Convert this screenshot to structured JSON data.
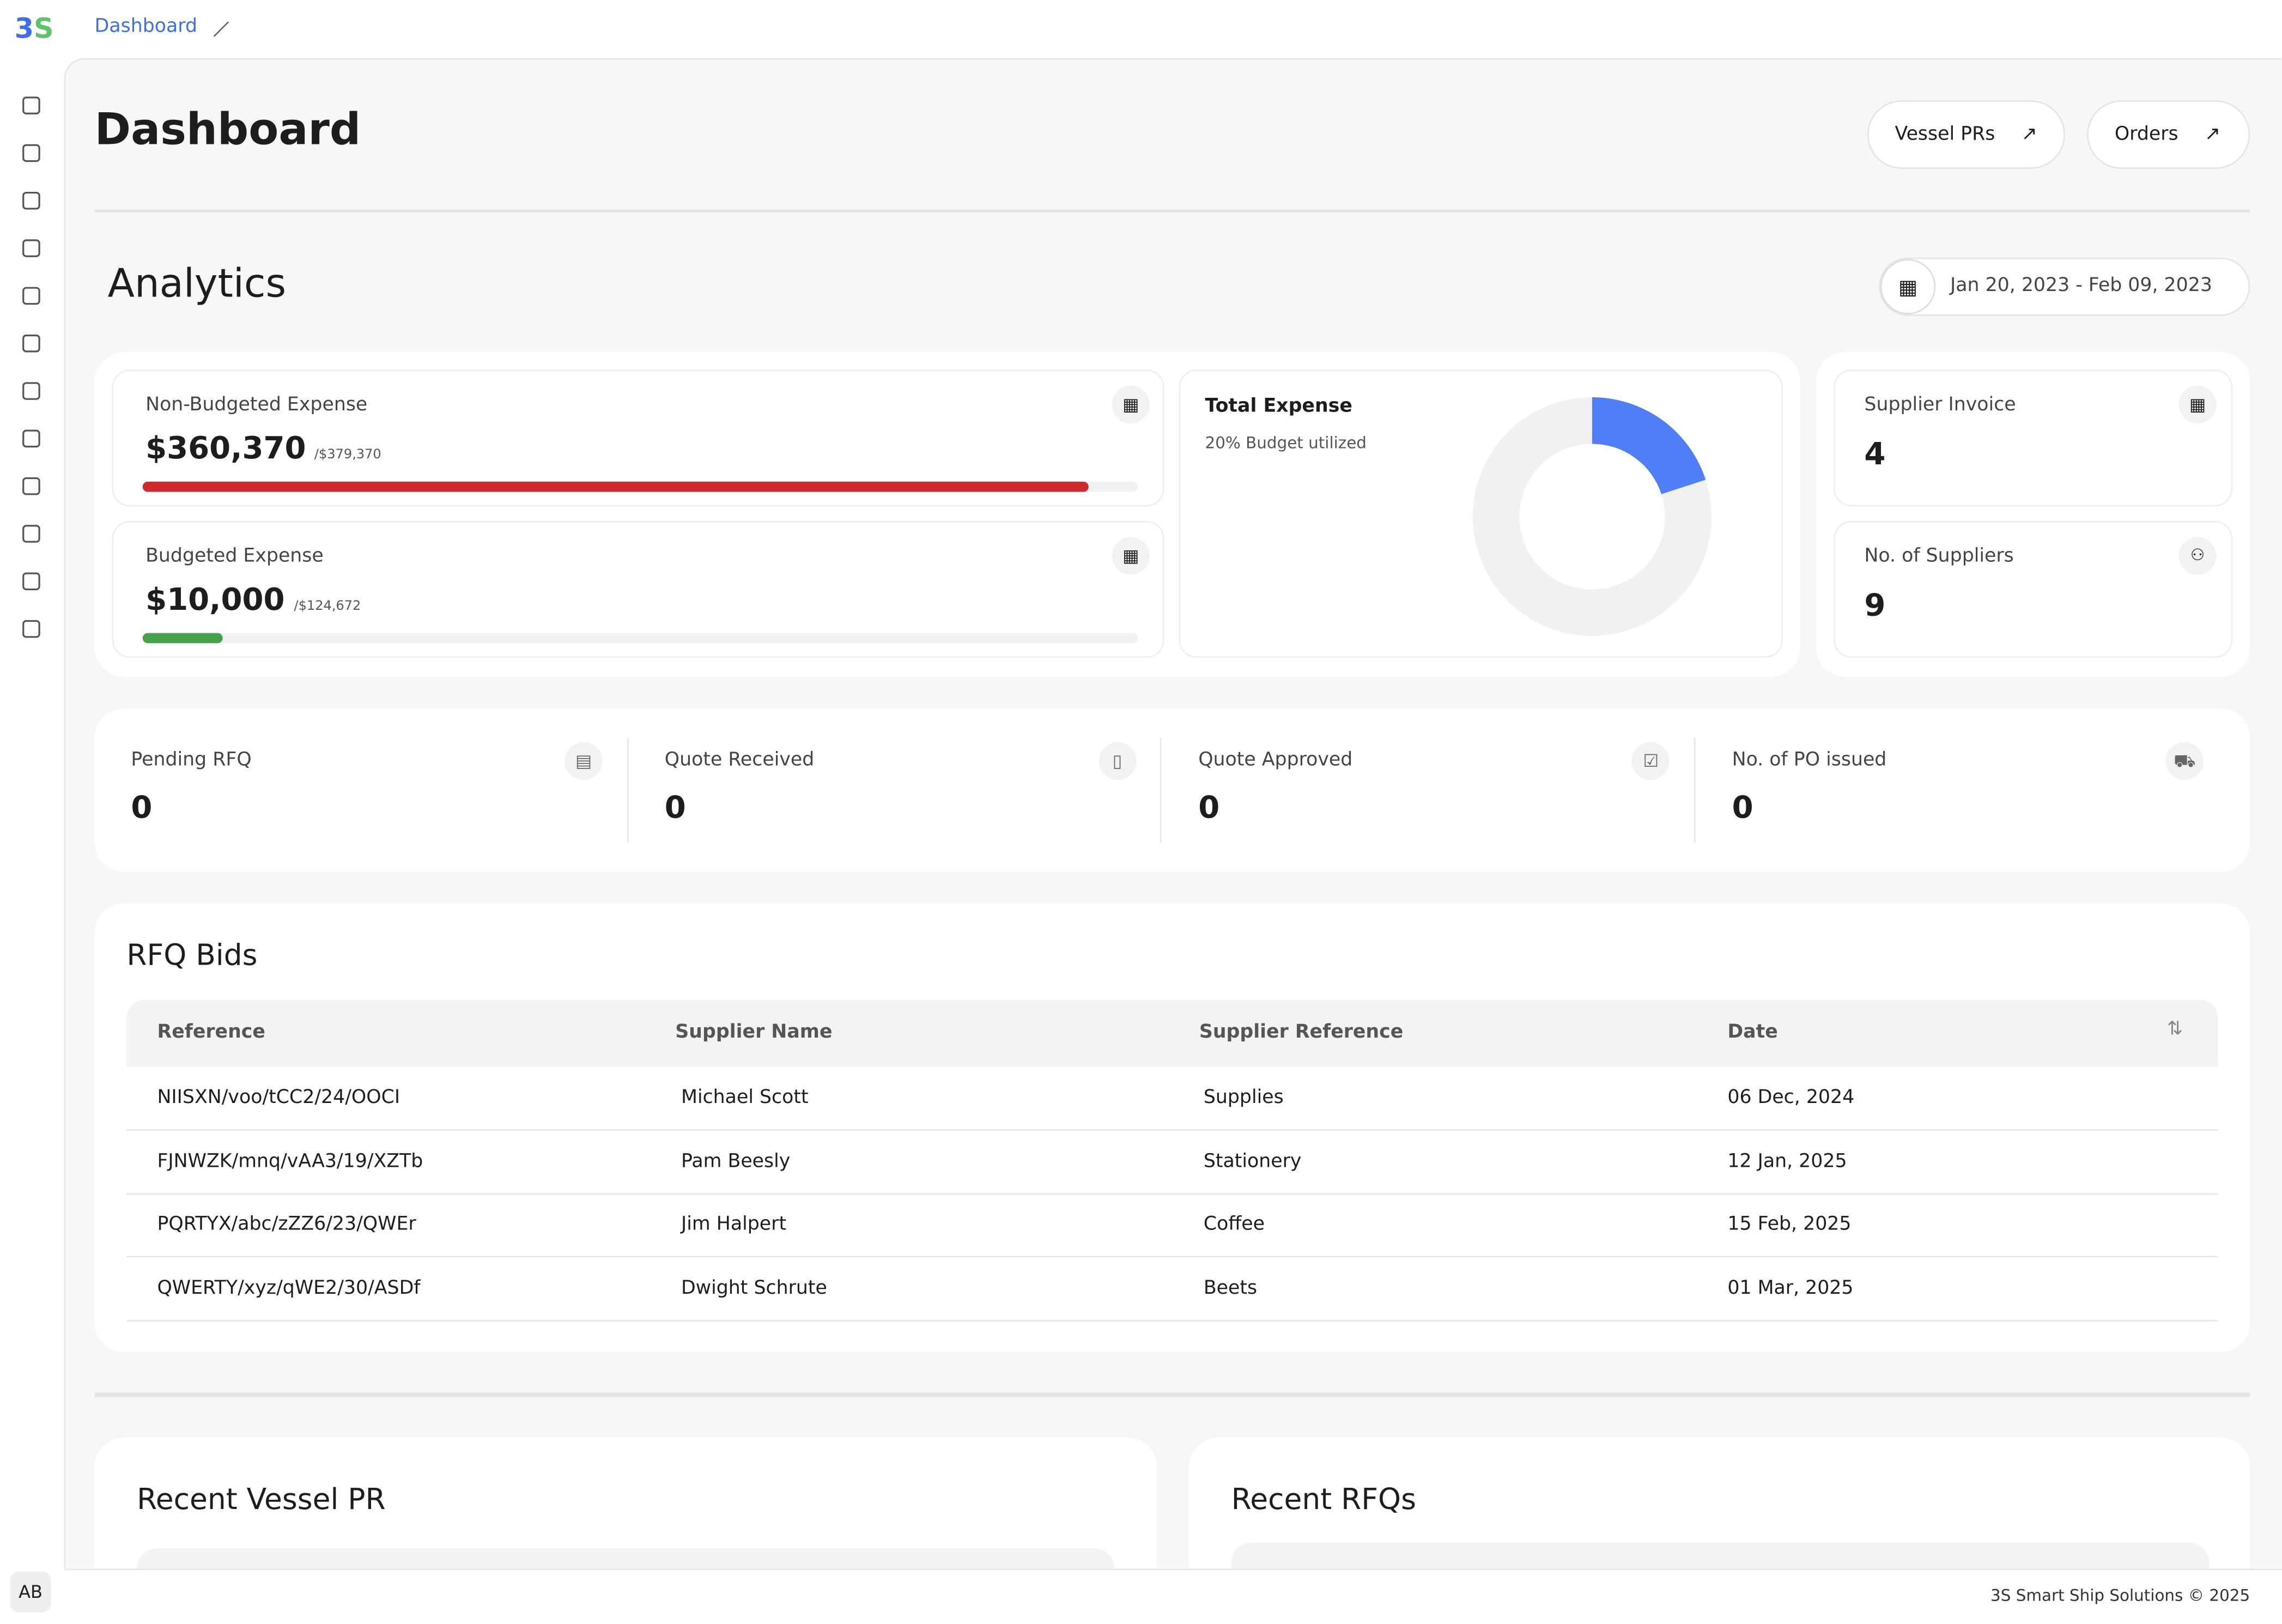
{
  "sidebar": {
    "logo": "3S",
    "avatar": "AB"
  },
  "breadcrumb": "Dashboard",
  "header": {
    "title": "Dashboard",
    "buttons": [
      "Vessel PRs",
      "Orders"
    ]
  },
  "analytics": {
    "title": "Analytics",
    "date_range": "Jan 20, 2023 - Feb 09, 2023"
  },
  "cards": {
    "non_budgeted": {
      "label": "Non-Budgeted Expense",
      "value_label": "$360,370",
      "limit_label": "/$379,370",
      "value": 360370,
      "limit": 379370,
      "color": "#cc2a2a"
    },
    "budgeted": {
      "label": "Budgeted Expense",
      "value_label": "$10,000",
      "limit_label": "/$124,672",
      "value": 10000,
      "limit": 124672,
      "color": "#45a049"
    },
    "total_expense": {
      "label": "Total Expense",
      "note": "20% Budget utilized",
      "utilized": 20,
      "color": "#4f7ef7"
    },
    "supplier_invoice": {
      "label": "Supplier Invoice",
      "value": 4
    },
    "suppliers": {
      "label": "No. of Suppliers",
      "value": 9
    }
  },
  "stats": [
    {
      "label": "Pending RFQ",
      "value": 0
    },
    {
      "label": "Quote Received",
      "value": 0
    },
    {
      "label": "Quote Approved",
      "value": 0
    },
    {
      "label": "No. of PO issued",
      "value": 0
    }
  ],
  "rfq_bids": {
    "title": "RFQ Bids",
    "columns": [
      "Reference",
      "Supplier Name",
      "Supplier Reference",
      "Date"
    ],
    "rows": [
      [
        "NIISXN/voo/tCC2/24/OOCI",
        "Michael Scott",
        "Supplies",
        "06 Dec, 2024"
      ],
      [
        "FJNWZK/mnq/vAA3/19/XZTb",
        "Pam Beesly",
        "Stationery",
        "12 Jan, 2025"
      ],
      [
        "PQRTYX/abc/zZZ6/23/QWEr",
        "Jim Halpert",
        "Coffee",
        "15 Feb, 2025"
      ],
      [
        "QWERTY/xyz/qWE2/30/ASDf",
        "Dwight Schrute",
        "Beets",
        "01 Mar, 2025"
      ]
    ]
  },
  "recent": {
    "vessel_pr": "Recent Vessel PR",
    "rfqs": "Recent RFQs"
  },
  "footer": "3S Smart Ship Solutions © 2025"
}
